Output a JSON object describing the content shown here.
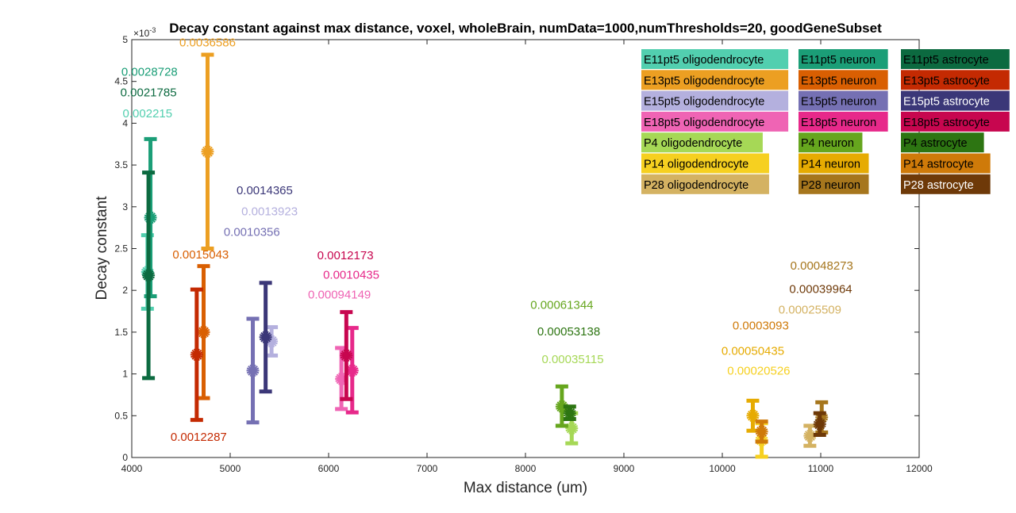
{
  "chart_data": {
    "type": "scatter",
    "title": "Decay constant against max distance, voxel, wholeBrain, numData=1000,numThresholds=20, goodGeneSubset",
    "xlabel": "Max distance (um)",
    "ylabel": "Decay constant",
    "y_exponent_label": "×10",
    "x_ticks": [
      "4000",
      "5000",
      "6000",
      "7000",
      "8000",
      "9000",
      "10000",
      "11000",
      "12000"
    ],
    "y_ticks": [
      "0",
      "0.5",
      "1",
      "1.5",
      "2",
      "2.5",
      "3",
      "3.5",
      "4",
      "4.5",
      "5"
    ],
    "xlim": [
      4000,
      12000
    ],
    "ylim": [
      0,
      5
    ],
    "y_scale_factor": "1e-3",
    "grid": false,
    "legend_position": "top-right",
    "series": [
      {
        "name": "E11pt5 oligodendrocyte",
        "color": "#52cfaf",
        "text_color": "#000000",
        "x": 4160,
        "y": 2.22,
        "err_low": 1.78,
        "err_high": 2.66,
        "label": "0.002215",
        "label_x": 4160,
        "label_y": 4.07
      },
      {
        "name": "E11pt5 neuron",
        "color": "#1b9e77",
        "text_color": "#000000",
        "x": 4190,
        "y": 2.87,
        "err_low": 1.93,
        "err_high": 3.81,
        "label": "0.0028728",
        "label_x": 4180,
        "label_y": 4.57
      },
      {
        "name": "E11pt5 astrocyte",
        "color": "#0c6a40",
        "text_color": "#000000",
        "x": 4170,
        "y": 2.18,
        "err_low": 0.95,
        "err_high": 3.41,
        "label": "0.0021785",
        "label_x": 4170,
        "label_y": 4.32
      },
      {
        "name": "E13pt5 oligodendrocyte",
        "color": "#ec9f22",
        "text_color": "#000000",
        "x": 4770,
        "y": 3.66,
        "err_low": 2.5,
        "err_high": 4.82,
        "label": "0.0036586",
        "label_x": 4770,
        "label_y": 4.92
      },
      {
        "name": "E13pt5 neuron",
        "color": "#d95f02",
        "text_color": "#000000",
        "x": 4730,
        "y": 1.5,
        "err_low": 0.71,
        "err_high": 2.29,
        "label": "0.0015043",
        "label_x": 4700,
        "label_y": 2.38
      },
      {
        "name": "E13pt5 astrocyte",
        "color": "#c42a02",
        "text_color": "#000000",
        "x": 4660,
        "y": 1.23,
        "err_low": 0.45,
        "err_high": 2.01,
        "label": "0.0012287",
        "label_x": 4680,
        "label_y": 0.2
      },
      {
        "name": "E15pt5 oligodendrocyte",
        "color": "#b4b0de",
        "text_color": "#000000",
        "x": 5420,
        "y": 1.39,
        "err_low": 1.22,
        "err_high": 1.56,
        "label": "0.0013923",
        "label_x": 5400,
        "label_y": 2.9
      },
      {
        "name": "E15pt5 neuron",
        "color": "#7570b3",
        "text_color": "#000000",
        "x": 5230,
        "y": 1.04,
        "err_low": 0.42,
        "err_high": 1.66,
        "label": "0.0010356",
        "label_x": 5220,
        "label_y": 2.65
      },
      {
        "name": "E15pt5 astrocyte",
        "color": "#3b3778",
        "text_color": "#ffffff",
        "x": 5360,
        "y": 1.44,
        "err_low": 0.79,
        "err_high": 2.09,
        "label": "0.0014365",
        "label_x": 5350,
        "label_y": 3.15
      },
      {
        "name": "E18pt5 oligodendrocyte",
        "color": "#ef64b4",
        "text_color": "#000000",
        "x": 6130,
        "y": 0.94,
        "err_low": 0.58,
        "err_high": 1.31,
        "label": "0.00094149",
        "label_x": 6110,
        "label_y": 1.9
      },
      {
        "name": "E18pt5 neuron",
        "color": "#e7298a",
        "text_color": "#000000",
        "x": 6240,
        "y": 1.04,
        "err_low": 0.54,
        "err_high": 1.55,
        "label": "0.0010435",
        "label_x": 6230,
        "label_y": 2.14
      },
      {
        "name": "E18pt5 astrocyte",
        "color": "#c7064f",
        "text_color": "#000000",
        "x": 6180,
        "y": 1.22,
        "err_low": 0.7,
        "err_high": 1.74,
        "label": "0.0012173",
        "label_x": 6170,
        "label_y": 2.37
      },
      {
        "name": "P4 oligodendrocyte",
        "color": "#a6d856",
        "text_color": "#000000",
        "x": 8470,
        "y": 0.35,
        "err_low": 0.17,
        "err_high": 0.53,
        "label": "0.00035115",
        "label_x": 8480,
        "label_y": 1.13
      },
      {
        "name": "P4 neuron",
        "color": "#66a61e",
        "text_color": "#000000",
        "x": 8370,
        "y": 0.61,
        "err_low": 0.38,
        "err_high": 0.85,
        "label": "0.00061344",
        "label_x": 8370,
        "label_y": 1.78
      },
      {
        "name": "P4 astrocyte",
        "color": "#2d7512",
        "text_color": "#000000",
        "x": 8450,
        "y": 0.53,
        "err_low": 0.46,
        "err_high": 0.61,
        "label": "0.00053138",
        "label_x": 8440,
        "label_y": 1.46
      },
      {
        "name": "P14 oligodendrocyte",
        "color": "#f6d020",
        "text_color": "#000000",
        "x": 10400,
        "y": 0.21,
        "err_low": 0.01,
        "err_high": 0.41,
        "label": "0.00020526",
        "label_x": 10370,
        "label_y": 0.99
      },
      {
        "name": "P14 neuron",
        "color": "#e6ab02",
        "text_color": "#000000",
        "x": 10310,
        "y": 0.5,
        "err_low": 0.32,
        "err_high": 0.68,
        "label": "0.00050435",
        "label_x": 10310,
        "label_y": 1.23
      },
      {
        "name": "P14 astrocyte",
        "color": "#cf7a09",
        "text_color": "#000000",
        "x": 10400,
        "y": 0.31,
        "err_low": 0.19,
        "err_high": 0.43,
        "label": "0.0003093",
        "label_x": 10390,
        "label_y": 1.53
      },
      {
        "name": "P28 oligodendrocyte",
        "color": "#d4b262",
        "text_color": "#000000",
        "x": 10890,
        "y": 0.26,
        "err_low": 0.14,
        "err_high": 0.38,
        "label": "0.00025509",
        "label_x": 10890,
        "label_y": 1.72
      },
      {
        "name": "P28 neuron",
        "color": "#a6761d",
        "text_color": "#000000",
        "x": 11010,
        "y": 0.48,
        "err_low": 0.3,
        "err_high": 0.66,
        "label": "0.00048273",
        "label_x": 11010,
        "label_y": 2.25
      },
      {
        "name": "P28 astrocyte",
        "color": "#6e3908",
        "text_color": "#ffffff",
        "x": 10990,
        "y": 0.4,
        "err_low": 0.27,
        "err_high": 0.53,
        "label": "0.00039964",
        "label_x": 11000,
        "label_y": 1.97
      }
    ],
    "legend_columns": [
      [
        "E11pt5 oligodendrocyte",
        "E13pt5 oligodendrocyte",
        "E15pt5 oligodendrocyte",
        "E18pt5 oligodendrocyte",
        "P4 oligodendrocyte",
        "P14 oligodendrocyte",
        "P28 oligodendrocyte"
      ],
      [
        "E11pt5 neuron",
        "E13pt5 neuron",
        "E15pt5 neuron",
        "E18pt5 neuron",
        "P4 neuron",
        "P14 neuron",
        "P28 neuron"
      ],
      [
        "E11pt5 astrocyte",
        "E13pt5 astrocyte",
        "E15pt5 astrocyte",
        "E18pt5 astrocyte",
        "P4 astrocyte",
        "P14 astrocyte",
        "P28 astrocyte"
      ]
    ]
  }
}
